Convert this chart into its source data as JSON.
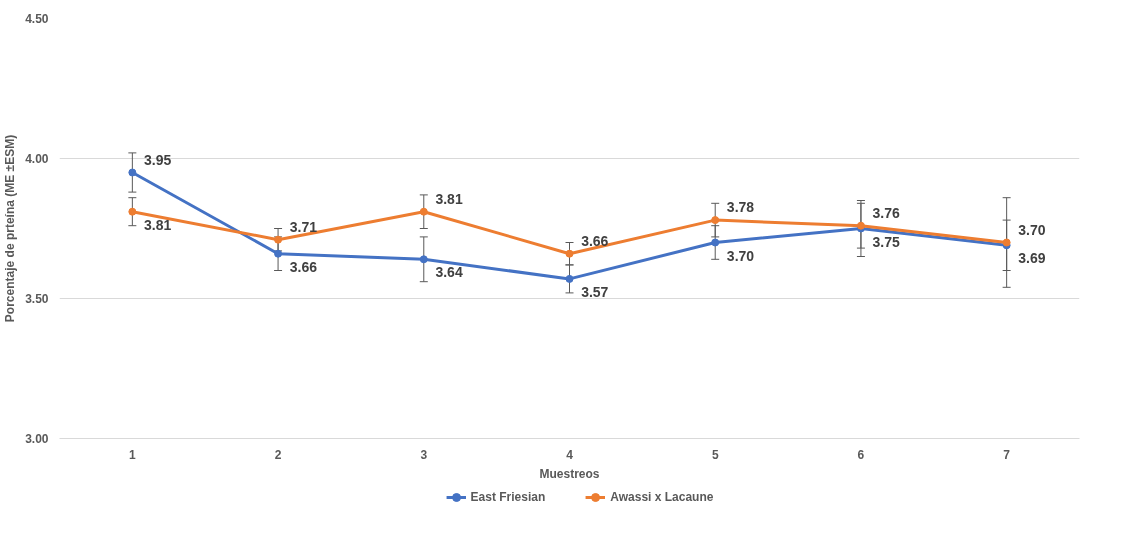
{
  "chart_data": {
    "type": "line",
    "xlabel": "Muestreos",
    "ylabel": "Porcentaje de prteína (ME ±ESM)",
    "categories": [
      "1",
      "2",
      "3",
      "4",
      "5",
      "6",
      "7"
    ],
    "series": [
      {
        "name": "East Friesian",
        "color": "#4472c4",
        "values": [
          3.95,
          3.66,
          3.64,
          3.57,
          3.7,
          3.75,
          3.69
        ],
        "errors": [
          0.07,
          0.06,
          0.08,
          0.05,
          0.06,
          0.1,
          0.09
        ],
        "value_labels": [
          "3.95",
          "3.66",
          "3.64",
          "3.57",
          "3.70",
          "3.75",
          "3.69"
        ]
      },
      {
        "name": "Awassi x Lacaune",
        "color": "#ed7d31",
        "values": [
          3.81,
          3.71,
          3.81,
          3.66,
          3.78,
          3.76,
          3.7
        ],
        "errors": [
          0.05,
          0.04,
          0.06,
          0.04,
          0.06,
          0.08,
          0.16
        ],
        "value_labels": [
          "3.81",
          "3.71",
          "3.81",
          "3.66",
          "3.78",
          "3.76",
          "3.70"
        ]
      }
    ],
    "ylim": [
      3.0,
      4.5
    ],
    "yticks": [
      {
        "value": 3.0,
        "label": "3.00"
      },
      {
        "value": 3.5,
        "label": "3.50"
      },
      {
        "value": 4.0,
        "label": "4.00"
      },
      {
        "value": 4.5,
        "label": "4.50"
      }
    ],
    "grid": "y",
    "legend": "bottom",
    "marker": "circle",
    "line_style": "solid"
  }
}
